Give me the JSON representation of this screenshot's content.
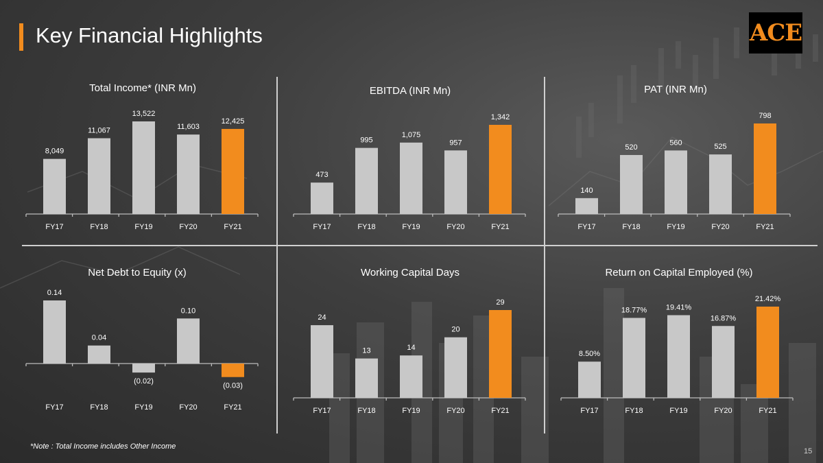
{
  "header": {
    "title": "Key Financial Highlights",
    "logo": "ACE"
  },
  "footer": {
    "note": "*Note : Total Income includes Other Income",
    "page": "15"
  },
  "colors": {
    "accent": "#f28c1e",
    "bar": "#c8c8c8",
    "divider": "#d0d0d0"
  },
  "chart_data": [
    {
      "type": "bar",
      "title": "Total Income* (INR Mn)",
      "categories": [
        "FY17",
        "FY18",
        "FY19",
        "FY20",
        "FY21"
      ],
      "values": [
        8049,
        11067,
        13522,
        11603,
        12425
      ],
      "labels": [
        "8,049",
        "11,067",
        "13,522",
        "11,603",
        "12,425"
      ],
      "highlight": [
        false,
        false,
        false,
        false,
        true
      ],
      "ylim": [
        0,
        13522
      ]
    },
    {
      "type": "bar",
      "title": "EBITDA (INR Mn)",
      "categories": [
        "FY17",
        "FY18",
        "FY19",
        "FY20",
        "FY21"
      ],
      "values": [
        473,
        995,
        1075,
        957,
        1342
      ],
      "labels": [
        "473",
        "995",
        "1,075",
        "957",
        "1,342"
      ],
      "highlight": [
        false,
        false,
        false,
        false,
        true
      ],
      "ylim": [
        0,
        1342
      ]
    },
    {
      "type": "bar",
      "title": "PAT (INR Mn)",
      "categories": [
        "FY17",
        "FY18",
        "FY19",
        "FY20",
        "FY21"
      ],
      "values": [
        140,
        520,
        560,
        525,
        798
      ],
      "labels": [
        "140",
        "520",
        "560",
        "525",
        "798"
      ],
      "highlight": [
        false,
        false,
        false,
        false,
        true
      ],
      "ylim": [
        0,
        798
      ]
    },
    {
      "type": "bar",
      "title": "Net Debt to Equity (x)",
      "categories": [
        "FY17",
        "FY18",
        "FY19",
        "FY20",
        "FY21"
      ],
      "values": [
        0.14,
        0.04,
        -0.02,
        0.1,
        -0.03
      ],
      "labels": [
        "0.14",
        "0.04",
        "(0.02)",
        "0.10",
        "(0.03)"
      ],
      "highlight": [
        false,
        false,
        false,
        false,
        true
      ],
      "ylim": [
        -0.03,
        0.14
      ]
    },
    {
      "type": "bar",
      "title": "Working Capital Days",
      "categories": [
        "FY17",
        "FY18",
        "FY19",
        "FY20",
        "FY21"
      ],
      "values": [
        24,
        13,
        14,
        20,
        29
      ],
      "labels": [
        "24",
        "13",
        "14",
        "20",
        "29"
      ],
      "highlight": [
        false,
        false,
        false,
        false,
        true
      ],
      "ylim": [
        0,
        29
      ]
    },
    {
      "type": "bar",
      "title": "Return on Capital Employed (%)",
      "categories": [
        "FY17",
        "FY18",
        "FY19",
        "FY20",
        "FY21"
      ],
      "values": [
        8.5,
        18.77,
        19.41,
        16.87,
        21.42
      ],
      "labels": [
        "8.50%",
        "18.77%",
        "19.41%",
        "16.87%",
        "21.42%"
      ],
      "highlight": [
        false,
        false,
        false,
        false,
        true
      ],
      "ylim": [
        0,
        21.42
      ]
    }
  ]
}
